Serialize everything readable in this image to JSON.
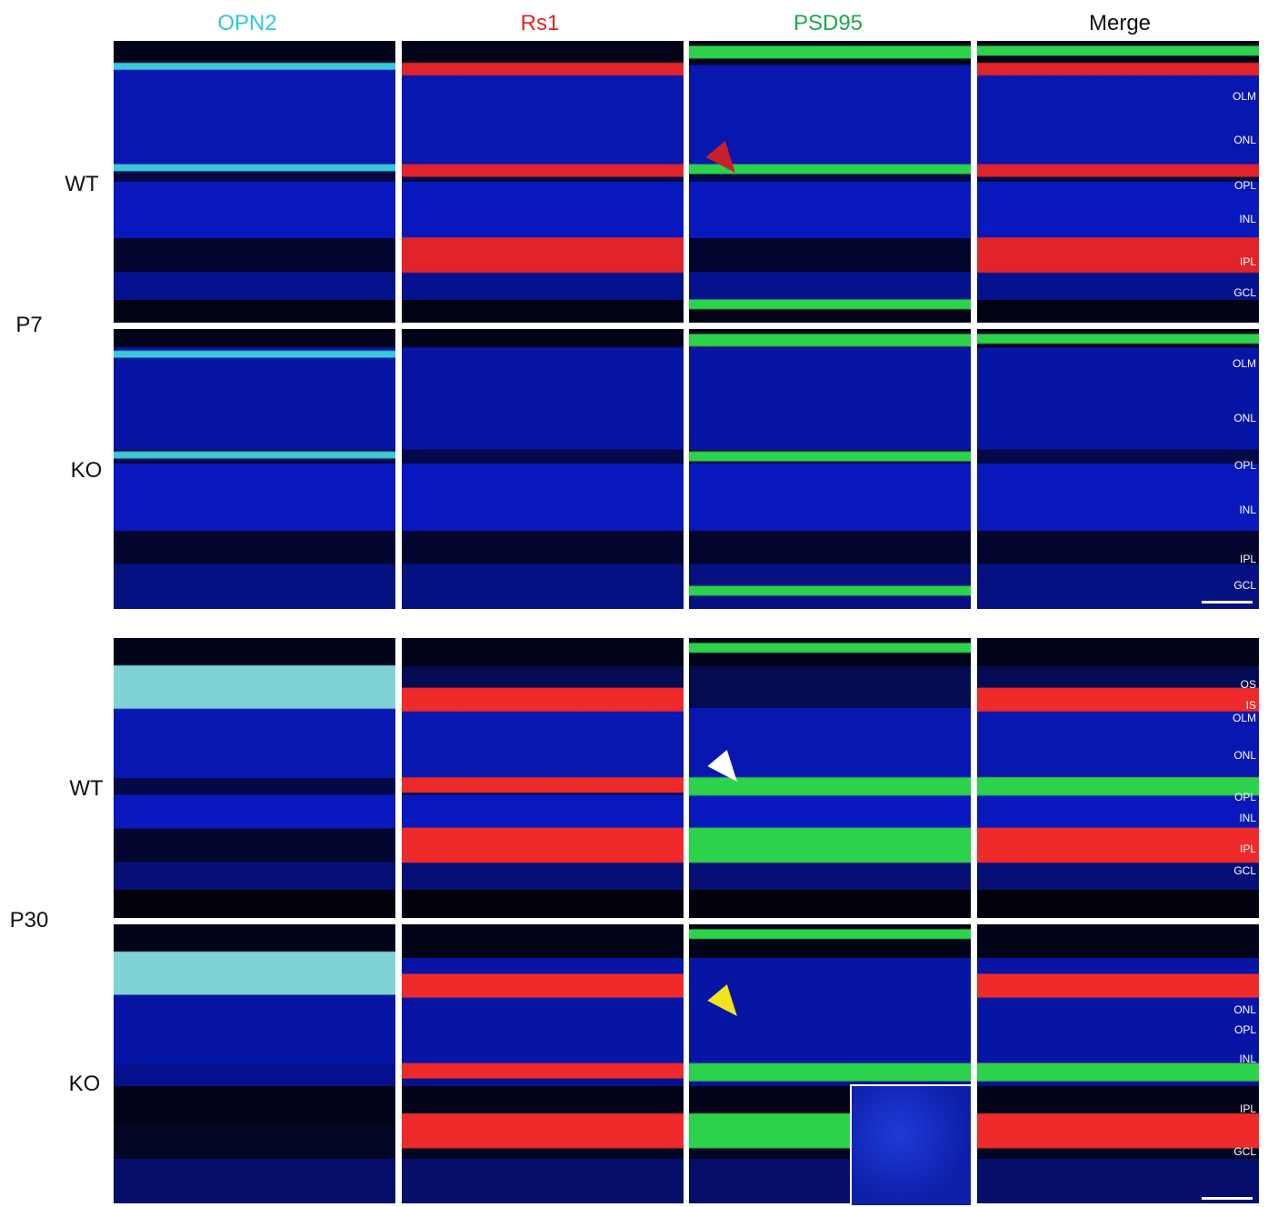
{
  "columns": [
    "OPN2",
    "Rs1",
    "PSD95",
    "Merge"
  ],
  "ages": [
    {
      "label": "P7",
      "rows": [
        {
          "genotype": "WT",
          "layers": [
            "OLM",
            "ONL",
            "OPL",
            "INL",
            "IPL",
            "GCL"
          ]
        },
        {
          "genotype": "KO",
          "layers": [
            "OLM",
            "ONL",
            "OPL",
            "INL",
            "IPL",
            "GCL"
          ]
        }
      ]
    },
    {
      "label": "P30",
      "rows": [
        {
          "genotype": "WT",
          "layers": [
            "OS",
            "IS",
            "OLM",
            "ONL",
            "OPL",
            "INL",
            "IPL",
            "GCL"
          ]
        },
        {
          "genotype": "KO",
          "layers": [
            "ONL",
            "OPL",
            "INL",
            "IPL",
            "GCL"
          ]
        }
      ]
    }
  ]
}
